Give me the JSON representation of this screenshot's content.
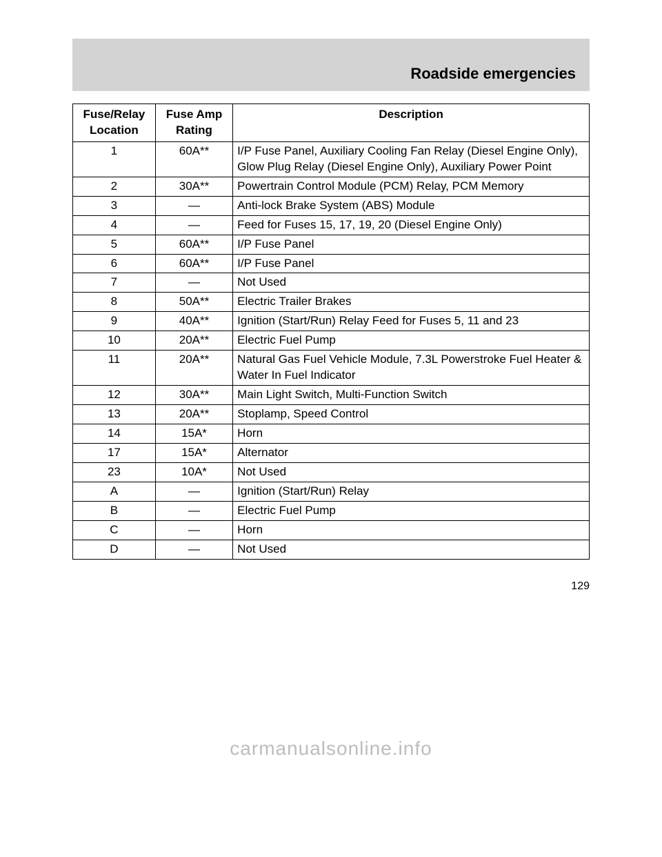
{
  "header": {
    "title": "Roadside emergencies"
  },
  "table": {
    "columns": [
      "Fuse/Relay\nLocation",
      "Fuse Amp\nRating",
      "Description"
    ],
    "rows": [
      {
        "loc": "1",
        "rating": "60A**",
        "desc": "I/P Fuse Panel, Auxiliary Cooling Fan Relay (Diesel Engine Only), Glow Plug Relay (Diesel Engine Only), Auxiliary Power Point"
      },
      {
        "loc": "2",
        "rating": "30A**",
        "desc": "Powertrain Control Module (PCM) Relay, PCM Memory"
      },
      {
        "loc": "3",
        "rating": "—",
        "desc": "Anti-lock Brake System (ABS) Module"
      },
      {
        "loc": "4",
        "rating": "—",
        "desc": "Feed for Fuses 15, 17, 19, 20 (Diesel Engine Only)"
      },
      {
        "loc": "5",
        "rating": "60A**",
        "desc": "I/P Fuse Panel"
      },
      {
        "loc": "6",
        "rating": "60A**",
        "desc": "I/P Fuse Panel"
      },
      {
        "loc": "7",
        "rating": "—",
        "desc": "Not Used"
      },
      {
        "loc": "8",
        "rating": "50A**",
        "desc": "Electric Trailer Brakes"
      },
      {
        "loc": "9",
        "rating": "40A**",
        "desc": "Ignition (Start/Run) Relay Feed for Fuses 5, 11 and 23"
      },
      {
        "loc": "10",
        "rating": "20A**",
        "desc": "Electric Fuel Pump"
      },
      {
        "loc": "11",
        "rating": "20A**",
        "desc": "Natural Gas Fuel Vehicle Module, 7.3L Powerstroke Fuel Heater & Water In Fuel Indicator"
      },
      {
        "loc": "12",
        "rating": "30A**",
        "desc": "Main Light Switch, Multi-Function Switch"
      },
      {
        "loc": "13",
        "rating": "20A**",
        "desc": "Stoplamp, Speed Control"
      },
      {
        "loc": "14",
        "rating": "15A*",
        "desc": "Horn"
      },
      {
        "loc": "17",
        "rating": "15A*",
        "desc": "Alternator"
      },
      {
        "loc": "23",
        "rating": "10A*",
        "desc": "Not Used"
      },
      {
        "loc": "A",
        "rating": "—",
        "desc": "Ignition (Start/Run) Relay"
      },
      {
        "loc": "B",
        "rating": "—",
        "desc": "Electric Fuel Pump"
      },
      {
        "loc": "C",
        "rating": "—",
        "desc": "Horn"
      },
      {
        "loc": "D",
        "rating": "—",
        "desc": "Not Used"
      }
    ]
  },
  "pageNumber": "129",
  "watermark": "carmanualsonline.info",
  "typography": {
    "header_bg": "#d3d3d3",
    "header_fontsize": 22,
    "cell_fontsize": 17,
    "watermark_color": "#bdbdbd",
    "watermark_fontsize": 28
  }
}
